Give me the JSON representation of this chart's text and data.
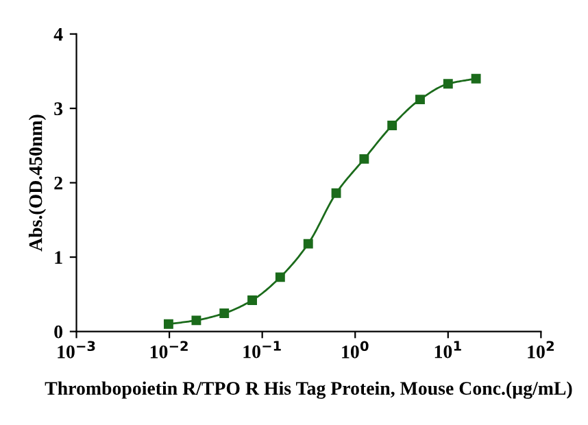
{
  "chart_data": {
    "type": "line",
    "xlabel": "Thrombopoietin R/TPO R His Tag Protein, Mouse Conc.(µg/mL)",
    "ylabel": "Abs.(OD.450nm)",
    "log": "x",
    "marker": "square",
    "line_style": "solid",
    "grid": false,
    "legend": false,
    "x": [
      0.0098,
      0.0195,
      0.039,
      0.078,
      0.156,
      0.3125,
      0.625,
      1.25,
      2.5,
      5,
      10,
      20
    ],
    "series": [
      {
        "color": "#1b6b1b",
        "values": [
          0.1,
          0.15,
          0.245,
          0.42,
          0.73,
          1.18,
          1.86,
          2.32,
          2.77,
          3.12,
          3.33,
          3.4
        ]
      }
    ],
    "xlim": [
      0.001,
      100
    ],
    "ylim": [
      0,
      4
    ],
    "xticks": [
      {
        "value": 0.001,
        "label": "10$^{−3}$"
      },
      {
        "value": 0.01,
        "label": "10$^{−2}$"
      },
      {
        "value": 0.1,
        "label": "10$^{−1}$"
      },
      {
        "value": 1,
        "label": "10$^{0}$"
      },
      {
        "value": 10,
        "label": "10$^{1}$"
      },
      {
        "value": 100,
        "label": "10$^{2}$"
      }
    ],
    "yticks": [
      0,
      1,
      2,
      3,
      4
    ]
  }
}
